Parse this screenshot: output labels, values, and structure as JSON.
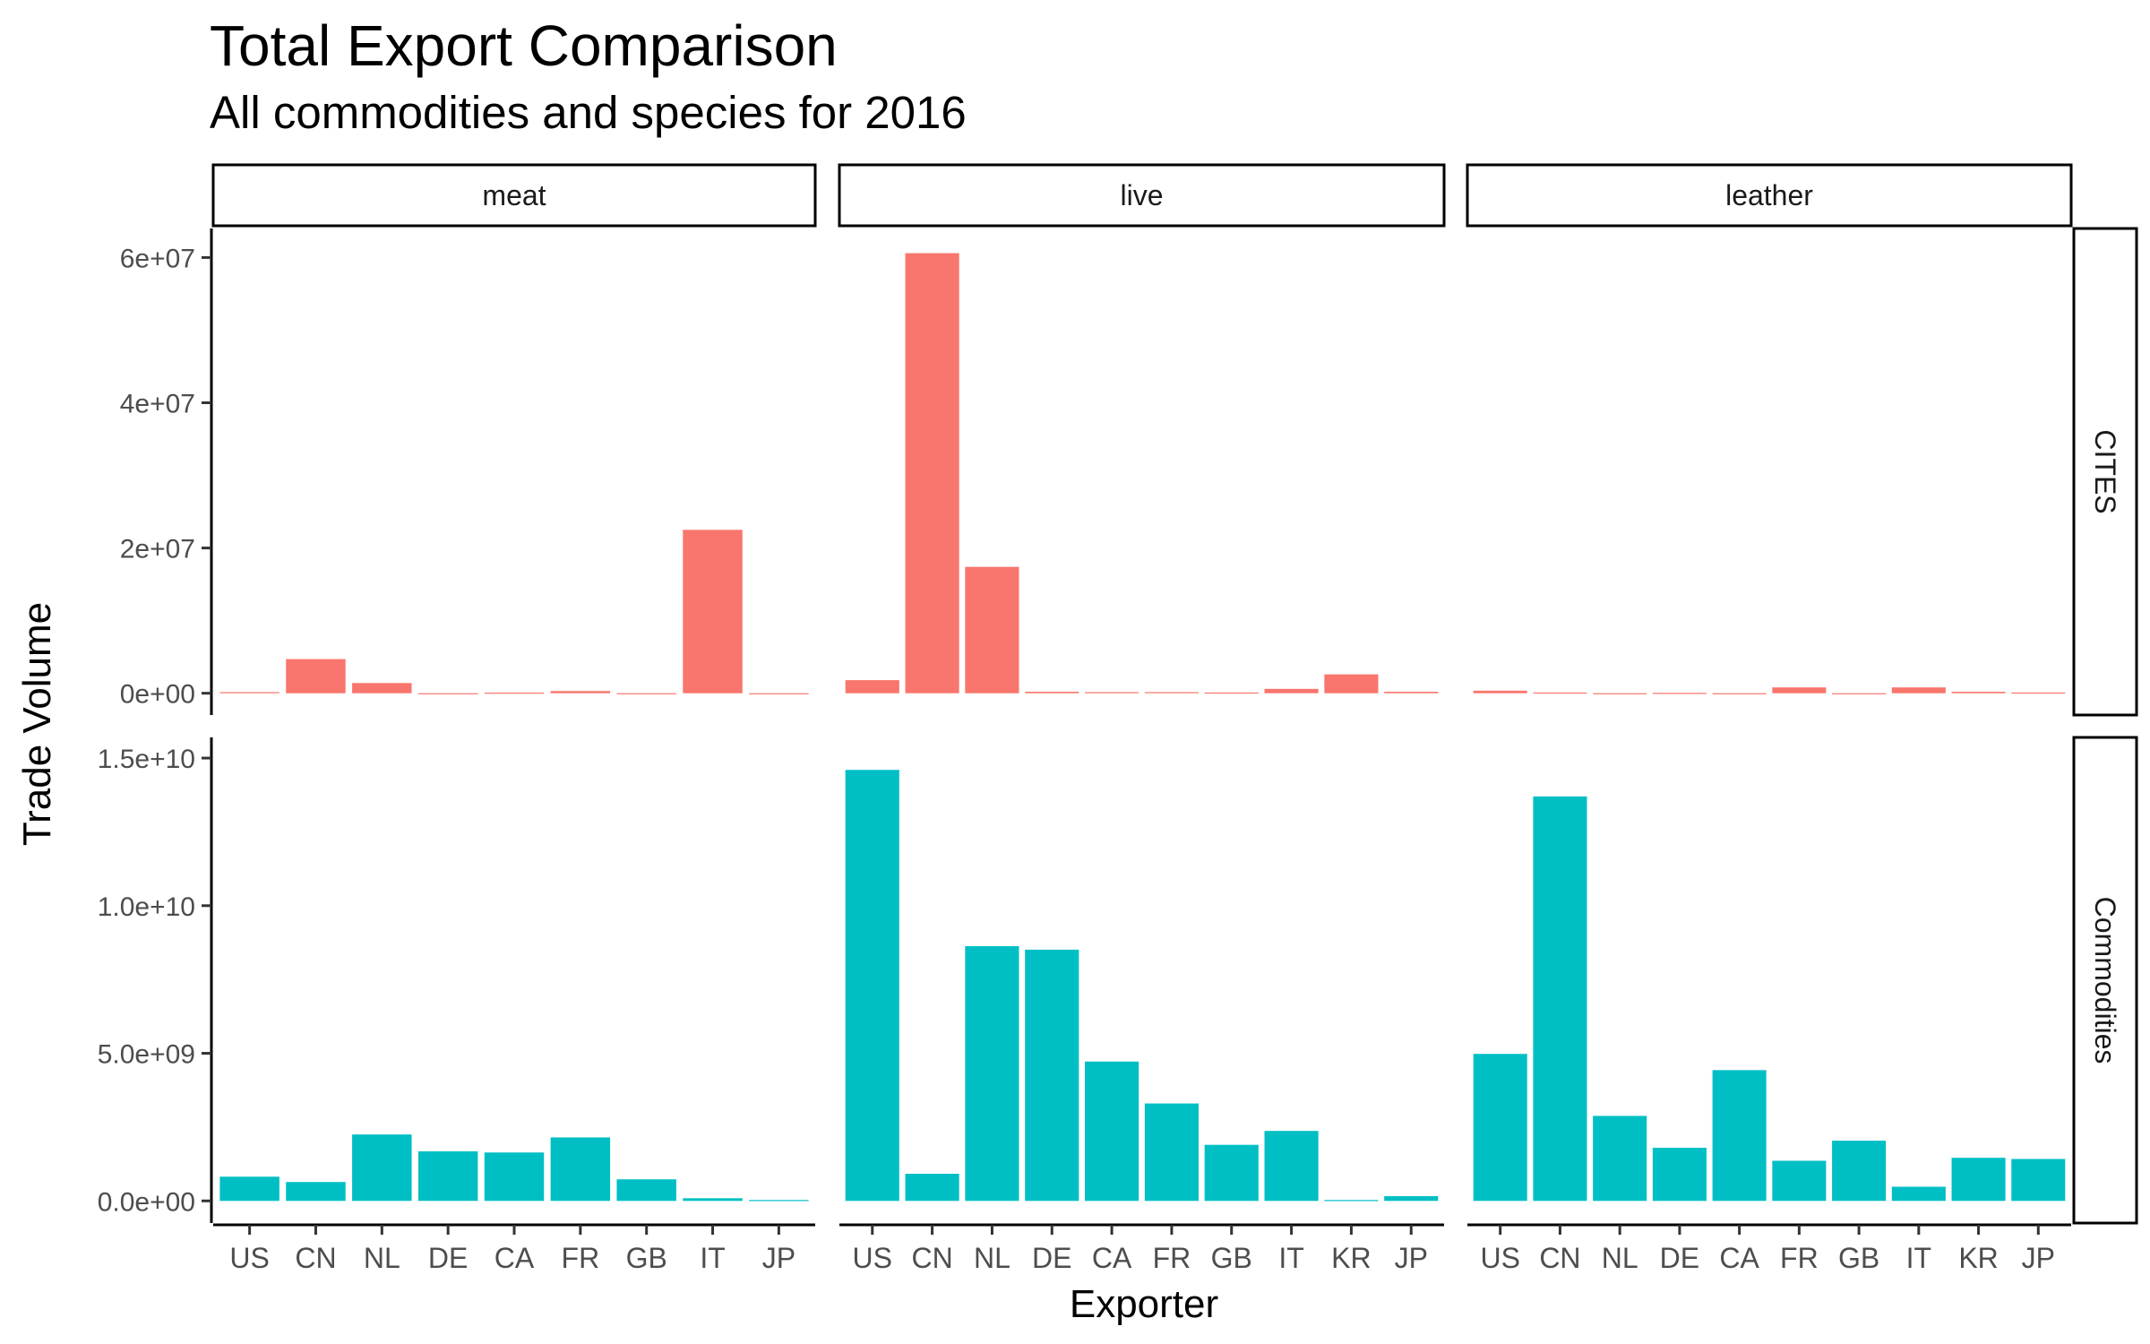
{
  "title": "Total Export Comparison",
  "subtitle": "All commodities and species for 2016",
  "xlabel": "Exporter",
  "ylabel": "Trade Volume",
  "colors": {
    "CITES": "#F8766D",
    "Commodities": "#00BFC4"
  },
  "chart_data": {
    "type": "bar",
    "facet_columns": [
      "meat",
      "live",
      "leather"
    ],
    "facet_rows": [
      "CITES",
      "Commodities"
    ],
    "scales": {
      "CITES": {
        "ylim": [
          -3000000,
          64000000
        ],
        "ticks": [
          0,
          20000000,
          40000000,
          60000000
        ],
        "tick_labels": [
          "0e+00",
          "2e+07",
          "4e+07",
          "6e+07"
        ]
      },
      "Commodities": {
        "ylim": [
          -750000000,
          15700000000
        ],
        "ticks": [
          0,
          5000000000,
          10000000000,
          15000000000
        ],
        "tick_labels": [
          "0.0e+00",
          "5.0e+09",
          "1.0e+10",
          "1.5e+10"
        ]
      }
    },
    "panels": [
      {
        "column": "meat",
        "row": "CITES",
        "categories": [
          "US",
          "CN",
          "NL",
          "DE",
          "CA",
          "FR",
          "GB",
          "IT",
          "JP"
        ],
        "values": [
          150000,
          4700000,
          1400000,
          0,
          80000,
          300000,
          0,
          22500000,
          0
        ]
      },
      {
        "column": "live",
        "row": "CITES",
        "categories": [
          "US",
          "CN",
          "NL",
          "DE",
          "CA",
          "FR",
          "GB",
          "IT",
          "KR",
          "JP"
        ],
        "values": [
          1800000,
          60600000,
          17400000,
          200000,
          150000,
          150000,
          100000,
          600000,
          2600000,
          200000
        ]
      },
      {
        "column": "leather",
        "row": "CITES",
        "categories": [
          "US",
          "CN",
          "NL",
          "DE",
          "CA",
          "FR",
          "GB",
          "IT",
          "KR",
          "JP"
        ],
        "values": [
          350000,
          100000,
          0,
          50000,
          0,
          800000,
          0,
          800000,
          200000,
          100000
        ]
      },
      {
        "column": "meat",
        "row": "Commodities",
        "categories": [
          "US",
          "CN",
          "NL",
          "DE",
          "CA",
          "FR",
          "GB",
          "IT",
          "JP"
        ],
        "values": [
          820000000,
          640000000,
          2250000000,
          1680000000,
          1640000000,
          2150000000,
          730000000,
          90000000,
          30000000
        ]
      },
      {
        "column": "live",
        "row": "Commodities",
        "categories": [
          "US",
          "CN",
          "NL",
          "DE",
          "CA",
          "FR",
          "GB",
          "IT",
          "KR",
          "JP"
        ],
        "values": [
          14600000000,
          920000000,
          8630000000,
          8510000000,
          4720000000,
          3300000000,
          1900000000,
          2370000000,
          30000000,
          160000000
        ]
      },
      {
        "column": "leather",
        "row": "Commodities",
        "categories": [
          "US",
          "CN",
          "NL",
          "DE",
          "CA",
          "FR",
          "GB",
          "IT",
          "KR",
          "JP"
        ],
        "values": [
          4980000000,
          13700000000,
          2880000000,
          1800000000,
          4430000000,
          1360000000,
          2040000000,
          480000000,
          1460000000,
          1420000000
        ]
      }
    ]
  }
}
